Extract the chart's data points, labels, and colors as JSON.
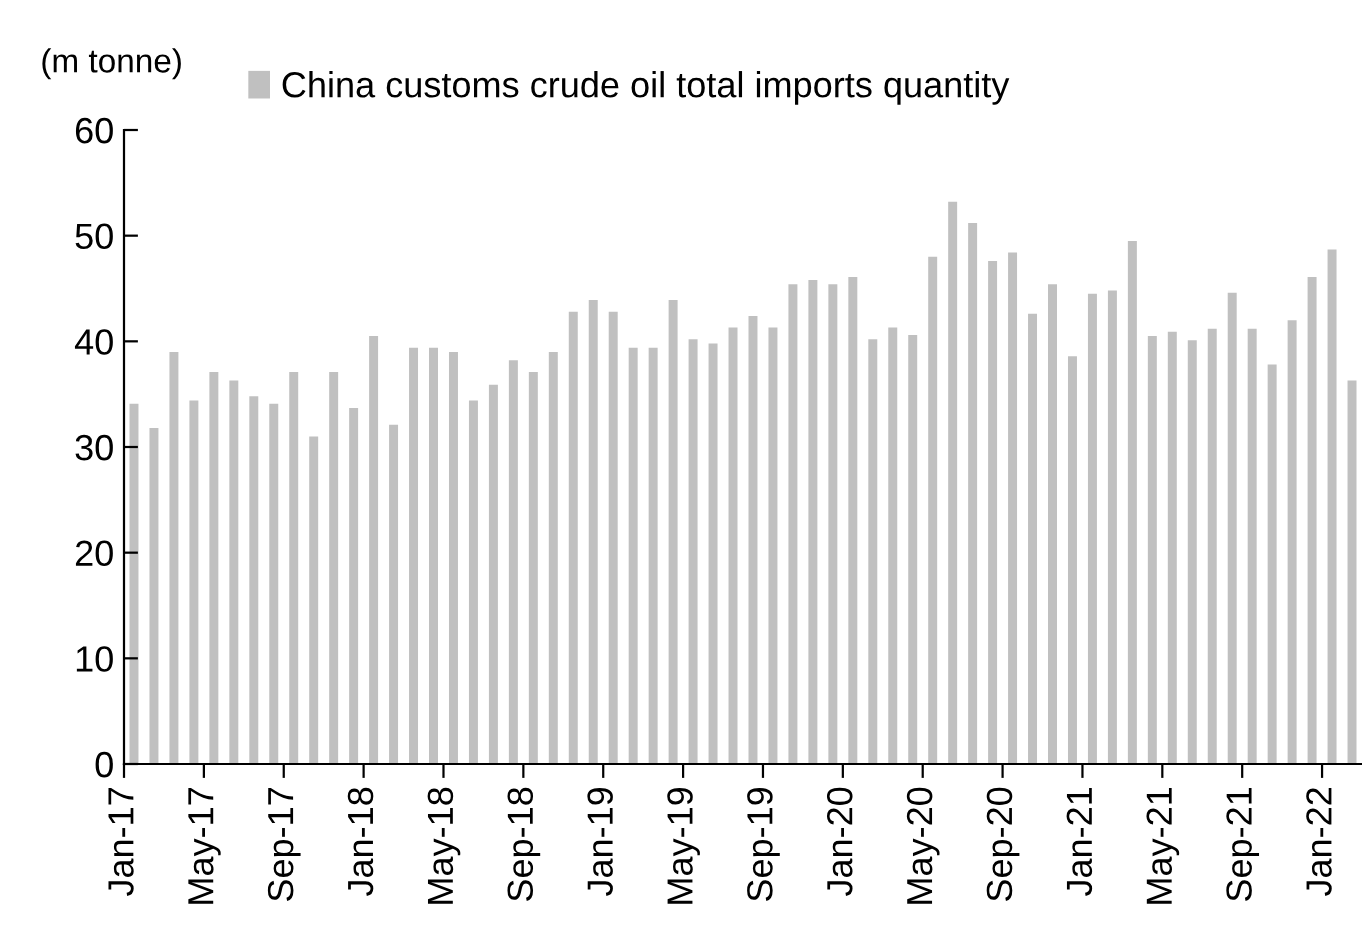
{
  "chart_data": {
    "type": "bar",
    "ylabel": "(m tonne)",
    "categories": [
      "Jan-17",
      null,
      null,
      null,
      "May-17",
      null,
      null,
      null,
      "Sep-17",
      null,
      null,
      null,
      "Jan-18",
      null,
      null,
      null,
      "May-18",
      null,
      null,
      null,
      "Sep-18",
      null,
      null,
      null,
      "Jan-19",
      null,
      null,
      null,
      "May-19",
      null,
      null,
      null,
      "Sep-19",
      null,
      null,
      null,
      "Jan-20",
      null,
      null,
      null,
      "May-20",
      null,
      null,
      null,
      "Sep-20",
      null,
      null,
      null,
      "Jan-21",
      null,
      null,
      null,
      "May-21",
      null,
      null,
      null,
      "Sep-21",
      null,
      null,
      null,
      "Jan-22",
      null
    ],
    "series": [
      {
        "name": "China customs crude oil total imports quantity",
        "color": "#c0c0c0",
        "values": [
          34.1,
          31.8,
          39.0,
          34.4,
          37.1,
          36.3,
          34.8,
          34.1,
          37.1,
          31.0,
          37.1,
          33.7,
          40.5,
          32.1,
          39.4,
          39.4,
          39.0,
          34.4,
          35.9,
          38.2,
          37.1,
          39.0,
          42.8,
          43.9,
          42.8,
          39.4,
          39.4,
          43.9,
          40.2,
          39.8,
          41.3,
          42.4,
          41.3,
          45.4,
          45.8,
          45.4,
          46.1,
          40.2,
          41.3,
          40.6,
          48.0,
          53.2,
          51.2,
          47.6,
          48.4,
          42.6,
          45.4,
          38.6,
          44.5,
          44.8,
          49.5,
          40.5,
          40.9,
          40.1,
          41.2,
          44.6,
          41.2,
          37.8,
          42.0,
          46.1,
          48.7,
          36.3
        ]
      }
    ],
    "ylim": [
      0,
      60
    ],
    "yticks": [
      0,
      10,
      20,
      30,
      40,
      50,
      60
    ],
    "grid": false,
    "legend": "top"
  }
}
